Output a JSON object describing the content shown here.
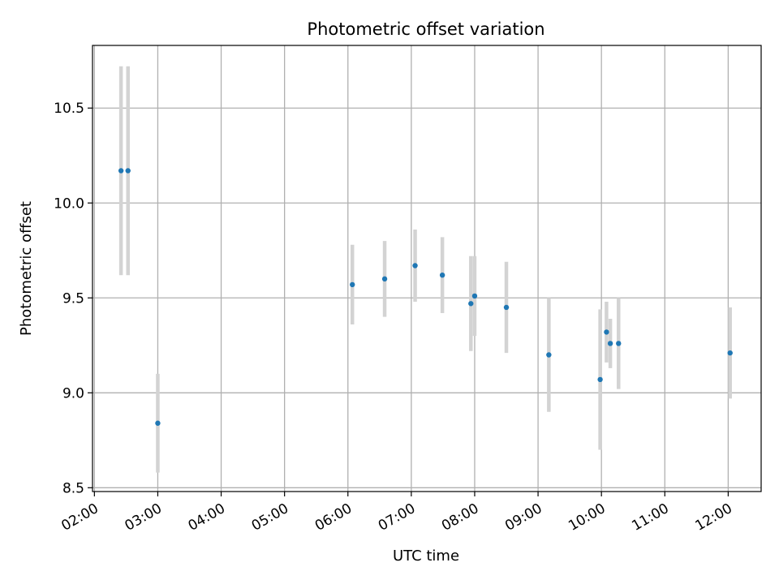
{
  "chart_data": {
    "type": "scatter",
    "title": "Photometric offset variation",
    "xlabel": "UTC time",
    "ylabel": "Photometric offset",
    "x_unit": "hours UTC",
    "xlim": [
      1.97,
      12.52
    ],
    "ylim": [
      8.48,
      10.83
    ],
    "x_ticks": [
      {
        "value": 2,
        "label": "02:00"
      },
      {
        "value": 3,
        "label": "03:00"
      },
      {
        "value": 4,
        "label": "04:00"
      },
      {
        "value": 5,
        "label": "05:00"
      },
      {
        "value": 6,
        "label": "06:00"
      },
      {
        "value": 7,
        "label": "07:00"
      },
      {
        "value": 8,
        "label": "08:00"
      },
      {
        "value": 9,
        "label": "09:00"
      },
      {
        "value": 10,
        "label": "10:00"
      },
      {
        "value": 11,
        "label": "11:00"
      },
      {
        "value": 12,
        "label": "12:00"
      }
    ],
    "y_ticks": [
      {
        "value": 8.5,
        "label": "8.5"
      },
      {
        "value": 9.0,
        "label": "9.0"
      },
      {
        "value": 9.5,
        "label": "9.5"
      },
      {
        "value": 10.0,
        "label": "10.0"
      },
      {
        "value": 10.5,
        "label": "10.5"
      }
    ],
    "grid": true,
    "marker_color": "#1f77b4",
    "errorbar_color": "#d3d3d3",
    "points": [
      {
        "time": "02:25",
        "x": 2.42,
        "y": 10.17,
        "err": 0.55
      },
      {
        "time": "02:32",
        "x": 2.53,
        "y": 10.17,
        "err": 0.55
      },
      {
        "time": "03:00",
        "x": 3.0,
        "y": 8.84,
        "err": 0.26
      },
      {
        "time": "06:04",
        "x": 6.07,
        "y": 9.57,
        "err": 0.21
      },
      {
        "time": "06:35",
        "x": 6.58,
        "y": 9.6,
        "err": 0.2
      },
      {
        "time": "07:04",
        "x": 7.06,
        "y": 9.67,
        "err": 0.19
      },
      {
        "time": "07:29",
        "x": 7.49,
        "y": 9.62,
        "err": 0.2
      },
      {
        "time": "07:57",
        "x": 7.94,
        "y": 9.47,
        "err": 0.25
      },
      {
        "time": "08:00",
        "x": 8.0,
        "y": 9.51,
        "err": 0.21
      },
      {
        "time": "08:30",
        "x": 8.5,
        "y": 9.45,
        "err": 0.24
      },
      {
        "time": "09:10",
        "x": 9.17,
        "y": 9.2,
        "err": 0.3
      },
      {
        "time": "09:59",
        "x": 9.98,
        "y": 9.07,
        "err": 0.37
      },
      {
        "time": "10:05",
        "x": 10.08,
        "y": 9.32,
        "err": 0.16
      },
      {
        "time": "10:08",
        "x": 10.14,
        "y": 9.26,
        "err": 0.13
      },
      {
        "time": "10:16",
        "x": 10.27,
        "y": 9.26,
        "err": 0.24
      },
      {
        "time": "12:02",
        "x": 12.03,
        "y": 9.21,
        "err": 0.24
      }
    ]
  }
}
